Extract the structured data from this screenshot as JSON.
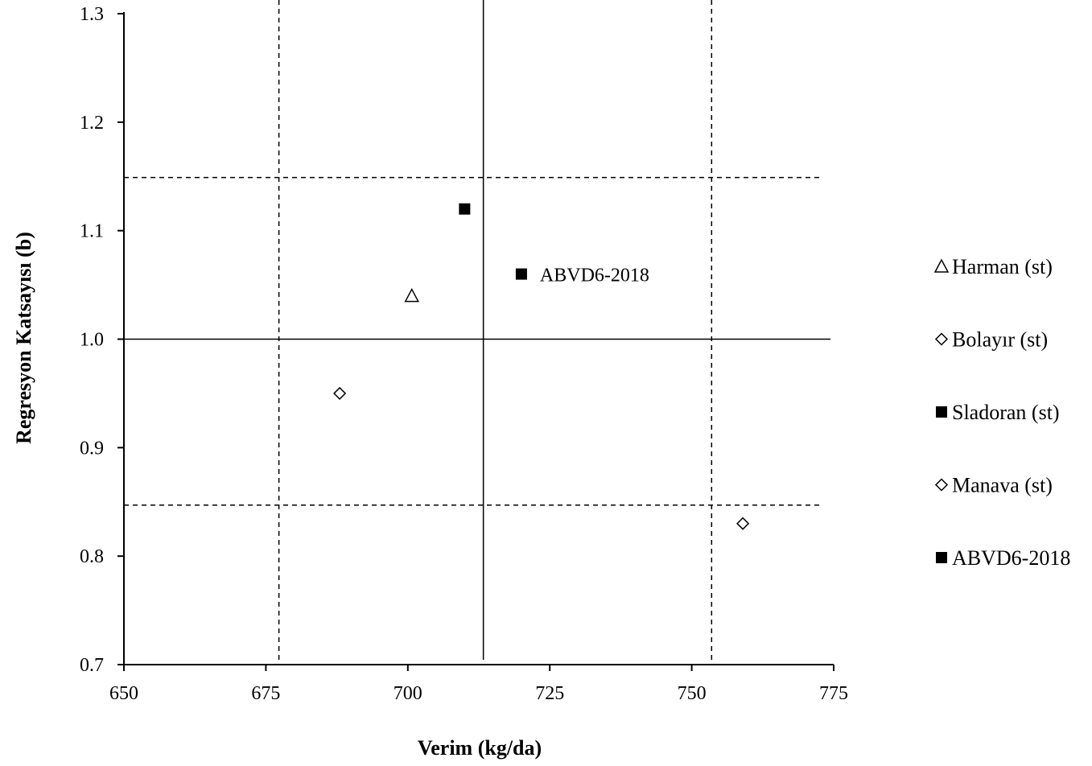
{
  "chart_data": {
    "type": "scatter",
    "title": "",
    "xlabel": "Verim (kg/da)",
    "ylabel": "Regresyon Katsayısı (b)",
    "xlim": [
      650,
      775
    ],
    "ylim": [
      0.7,
      1.3
    ],
    "x_ticks": [
      "650",
      "675",
      "700",
      "725",
      "750",
      "775"
    ],
    "y_ticks": [
      "0.7",
      "0.8",
      "0.9",
      "1.0",
      "1.1",
      "1.2",
      "1.3"
    ],
    "grid": false,
    "legend_position": "right",
    "series": [
      {
        "name": "Harman (st)",
        "marker": "triangle-open",
        "points": [
          {
            "x": 700.7,
            "y": 1.04
          }
        ]
      },
      {
        "name": "Bolayır (st)",
        "marker": "diamond-open",
        "points": [
          {
            "x": 688,
            "y": 0.95
          }
        ]
      },
      {
        "name": "Sladoran (st)",
        "marker": "square-filled",
        "points": [
          {
            "x": 710,
            "y": 1.12
          }
        ]
      },
      {
        "name": "Manava (st)",
        "marker": "diamond-open",
        "points": [
          {
            "x": 759,
            "y": 0.83
          }
        ]
      },
      {
        "name": "ABVD6-2018",
        "marker": "square-filled",
        "points": [
          {
            "x": 720,
            "y": 1.06
          }
        ]
      }
    ],
    "annotations": [
      {
        "text": "ABVD6-2018",
        "x": 720,
        "y": 1.06
      }
    ],
    "reference_lines": [
      {
        "orientation": "horizontal",
        "value": 1.0,
        "style": "solid"
      },
      {
        "orientation": "vertical",
        "value": 713.3,
        "style": "solid"
      },
      {
        "orientation": "horizontal",
        "value": 1.149,
        "style": "dashed"
      },
      {
        "orientation": "horizontal",
        "value": 0.847,
        "style": "dashed"
      },
      {
        "orientation": "vertical",
        "value": 677.3,
        "style": "dashed"
      },
      {
        "orientation": "vertical",
        "value": 753.5,
        "style": "dashed"
      }
    ]
  }
}
